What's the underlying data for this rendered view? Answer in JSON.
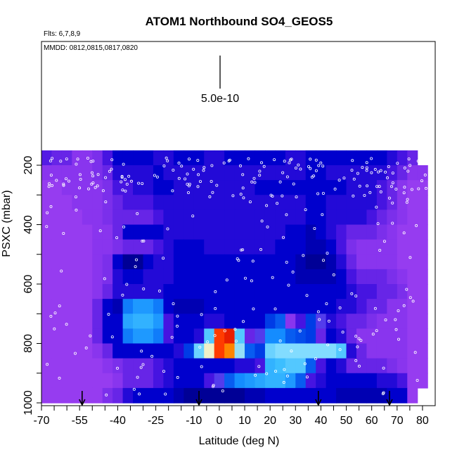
{
  "chart_data": {
    "type": "heatmap",
    "title": "ATOM1 Northbound SO4_GEOS5",
    "subtitle_flights": "Flts: 6,7,8,9",
    "subtitle_dates": "MMDD: 0812,0815,0817,0820",
    "xlabel": "Latitude (deg N)",
    "ylabel": "PSXC (mbar)",
    "xlim": [
      -70,
      85
    ],
    "ylim": [
      1000,
      0
    ],
    "x_tick_labels": [
      "-70",
      "-55",
      "-40",
      "-25",
      "-10",
      "0",
      "10",
      "20",
      "30",
      "40",
      "50",
      "60",
      "70",
      "80"
    ],
    "y_tick_labels": [
      "200",
      "400",
      "600",
      "800",
      "1000"
    ],
    "scale_label": "5.0e-10",
    "scale_line_lat": 0,
    "lat_bins": [
      -68,
      -64,
      -60,
      -56,
      -52,
      -48,
      -44,
      -40,
      -36,
      -32,
      -28,
      -24,
      -20,
      -16,
      -12,
      -8,
      -4,
      0,
      4,
      8,
      12,
      16,
      20,
      24,
      28,
      32,
      36,
      40,
      44,
      48,
      52,
      56,
      60,
      64,
      68,
      72,
      76,
      80
    ],
    "pressure_bins": [
      175,
      225,
      275,
      325,
      375,
      425,
      475,
      525,
      575,
      625,
      675,
      725,
      775,
      825,
      875,
      925,
      975
    ],
    "values": [
      [
        0.42,
        0.45,
        0.45,
        0.5,
        0.5,
        0.48,
        0.4,
        0.3,
        0.3,
        0.3,
        0.3,
        0.35,
        0.35,
        0.3,
        0.3,
        0.3,
        0.35,
        0.35,
        0.3,
        0.3,
        0.3,
        0.3,
        0.3,
        0.3,
        0.35,
        0.35,
        0.3,
        0.3,
        0.3,
        0.3,
        0.3,
        0.3,
        0.3,
        0.3,
        0.35,
        0.4,
        0.45,
        0.0
      ],
      [
        0.5,
        0.5,
        0.5,
        0.5,
        0.5,
        0.48,
        0.45,
        0.35,
        0.35,
        0.35,
        0.35,
        0.3,
        0.35,
        0.35,
        0.35,
        0.35,
        0.35,
        0.35,
        0.35,
        0.35,
        0.35,
        0.35,
        0.35,
        0.35,
        0.35,
        0.35,
        0.3,
        0.3,
        0.35,
        0.35,
        0.35,
        0.35,
        0.35,
        0.35,
        0.4,
        0.45,
        0.5,
        0.5
      ],
      [
        0.52,
        0.52,
        0.5,
        0.5,
        0.5,
        0.5,
        0.48,
        0.4,
        0.4,
        0.35,
        0.35,
        0.3,
        0.3,
        0.35,
        0.35,
        0.35,
        0.35,
        0.35,
        0.35,
        0.35,
        0.35,
        0.3,
        0.3,
        0.3,
        0.3,
        0.3,
        0.3,
        0.3,
        0.3,
        0.3,
        0.35,
        0.35,
        0.35,
        0.4,
        0.45,
        0.5,
        0.52,
        0.52
      ],
      [
        0.52,
        0.52,
        0.52,
        0.5,
        0.5,
        0.5,
        0.48,
        0.45,
        0.4,
        0.4,
        0.4,
        0.35,
        0.35,
        0.35,
        0.35,
        0.35,
        0.35,
        0.35,
        0.35,
        0.35,
        0.35,
        0.35,
        0.35,
        0.35,
        0.35,
        0.35,
        0.3,
        0.3,
        0.35,
        0.35,
        0.35,
        0.35,
        0.35,
        0.4,
        0.45,
        0.5,
        0.52,
        0.52
      ],
      [
        0.52,
        0.52,
        0.52,
        0.52,
        0.5,
        0.5,
        0.48,
        0.45,
        0.45,
        0.45,
        0.45,
        0.4,
        0.35,
        0.35,
        0.35,
        0.35,
        0.35,
        0.35,
        0.35,
        0.35,
        0.35,
        0.35,
        0.35,
        0.35,
        0.35,
        0.35,
        0.3,
        0.3,
        0.35,
        0.35,
        0.35,
        0.35,
        0.4,
        0.45,
        0.48,
        0.5,
        0.52,
        0.52
      ],
      [
        0.52,
        0.52,
        0.52,
        0.52,
        0.52,
        0.5,
        0.5,
        0.45,
        0.3,
        0.3,
        0.3,
        0.3,
        0.35,
        0.35,
        0.35,
        0.35,
        0.35,
        0.35,
        0.35,
        0.35,
        0.35,
        0.35,
        0.35,
        0.35,
        0.3,
        0.3,
        0.25,
        0.3,
        0.35,
        0.4,
        0.45,
        0.45,
        0.45,
        0.48,
        0.5,
        0.52,
        0.52,
        0.52
      ],
      [
        0.52,
        0.52,
        0.52,
        0.52,
        0.52,
        0.5,
        0.5,
        0.48,
        0.45,
        0.45,
        0.45,
        0.4,
        0.35,
        0.3,
        0.3,
        0.3,
        0.35,
        0.35,
        0.35,
        0.35,
        0.35,
        0.35,
        0.35,
        0.3,
        0.3,
        0.3,
        0.25,
        0.25,
        0.3,
        0.4,
        0.48,
        0.5,
        0.5,
        0.5,
        0.5,
        0.52,
        0.52,
        0.52
      ],
      [
        0.52,
        0.52,
        0.52,
        0.52,
        0.52,
        0.5,
        0.48,
        0.3,
        0.15,
        0.15,
        0.3,
        0.35,
        0.35,
        0.3,
        0.3,
        0.3,
        0.3,
        0.3,
        0.3,
        0.3,
        0.3,
        0.3,
        0.3,
        0.3,
        0.3,
        0.25,
        0.2,
        0.2,
        0.25,
        0.35,
        0.45,
        0.5,
        0.5,
        0.5,
        0.5,
        0.52,
        0.52,
        0.52
      ],
      [
        0.52,
        0.52,
        0.52,
        0.52,
        0.52,
        0.5,
        0.48,
        0.35,
        0.3,
        0.3,
        0.35,
        0.35,
        0.35,
        0.3,
        0.3,
        0.3,
        0.3,
        0.3,
        0.3,
        0.3,
        0.3,
        0.3,
        0.3,
        0.3,
        0.3,
        0.25,
        0.25,
        0.25,
        0.25,
        0.3,
        0.4,
        0.45,
        0.45,
        0.45,
        0.48,
        0.5,
        0.52,
        0.52
      ],
      [
        0.52,
        0.52,
        0.52,
        0.52,
        0.52,
        0.5,
        0.45,
        0.35,
        0.35,
        0.35,
        0.35,
        0.35,
        0.3,
        0.3,
        0.3,
        0.3,
        0.3,
        0.3,
        0.3,
        0.3,
        0.3,
        0.3,
        0.3,
        0.3,
        0.3,
        0.3,
        0.3,
        0.3,
        0.3,
        0.3,
        0.35,
        0.4,
        0.4,
        0.45,
        0.45,
        0.48,
        0.52,
        0.52
      ],
      [
        0.52,
        0.52,
        0.52,
        0.52,
        0.52,
        0.45,
        0.3,
        0.25,
        0.9,
        1.0,
        1.0,
        0.9,
        0.3,
        0.25,
        0.25,
        0.25,
        0.3,
        0.3,
        0.3,
        0.3,
        0.3,
        0.3,
        0.3,
        0.3,
        0.3,
        0.3,
        0.3,
        0.3,
        0.3,
        0.35,
        0.35,
        0.4,
        0.45,
        0.45,
        0.5,
        0.5,
        0.52,
        0.52
      ],
      [
        0.52,
        0.52,
        0.52,
        0.52,
        0.52,
        0.45,
        0.3,
        0.3,
        1.05,
        1.1,
        1.1,
        1.0,
        0.4,
        0.3,
        0.3,
        0.3,
        0.35,
        0.35,
        0.3,
        0.3,
        0.3,
        0.3,
        0.7,
        0.8,
        0.5,
        0.4,
        0.7,
        0.6,
        0.35,
        0.4,
        0.45,
        0.45,
        0.48,
        0.5,
        0.5,
        0.5,
        0.52,
        0.52
      ],
      [
        0.52,
        0.52,
        0.52,
        0.52,
        0.52,
        0.45,
        0.3,
        0.3,
        0.9,
        1.0,
        1.0,
        0.9,
        0.4,
        0.3,
        0.3,
        0.35,
        1.2,
        2.1,
        2.2,
        1.2,
        0.45,
        0.6,
        0.95,
        0.95,
        0.8,
        0.75,
        0.7,
        0.45,
        0.3,
        0.35,
        0.45,
        0.5,
        0.5,
        0.5,
        0.5,
        0.5,
        0.52,
        0.52
      ],
      [
        0.52,
        0.52,
        0.52,
        0.52,
        0.52,
        0.5,
        0.45,
        0.3,
        0.3,
        0.3,
        0.3,
        0.3,
        0.3,
        0.35,
        0.7,
        1.25,
        1.6,
        2.1,
        2.0,
        1.35,
        0.8,
        0.7,
        1.25,
        1.3,
        1.3,
        1.3,
        1.3,
        1.3,
        1.3,
        1.2,
        0.35,
        0.45,
        0.5,
        0.5,
        0.5,
        0.5,
        0.52,
        0.52
      ],
      [
        0.52,
        0.52,
        0.52,
        0.52,
        0.52,
        0.52,
        0.5,
        0.48,
        0.45,
        0.45,
        0.45,
        0.4,
        0.35,
        0.3,
        0.3,
        0.3,
        0.3,
        0.3,
        0.3,
        0.35,
        0.35,
        0.4,
        1.1,
        1.15,
        1.2,
        1.2,
        0.8,
        0.4,
        0.3,
        0.35,
        0.45,
        0.45,
        0.45,
        0.45,
        0.48,
        0.5,
        0.52,
        0.52
      ],
      [
        0.52,
        0.52,
        0.52,
        0.52,
        0.52,
        0.52,
        0.52,
        0.5,
        0.45,
        0.45,
        0.45,
        0.4,
        0.35,
        0.3,
        0.3,
        0.3,
        0.4,
        0.6,
        0.8,
        0.95,
        1.0,
        1.05,
        1.1,
        1.1,
        1.0,
        0.8,
        0.4,
        0.35,
        0.3,
        0.3,
        0.3,
        0.3,
        0.3,
        0.35,
        0.35,
        0.4,
        0.52,
        0.52
      ],
      [
        0.52,
        0.52,
        0.52,
        0.52,
        0.52,
        0.52,
        0.48,
        0.45,
        0.35,
        0.3,
        0.3,
        0.3,
        0.3,
        0.25,
        0.2,
        0.2,
        0.2,
        0.2,
        0.2,
        0.2,
        0.25,
        0.25,
        0.3,
        0.3,
        0.3,
        0.3,
        0.3,
        0.3,
        0.3,
        0.25,
        0.25,
        0.25,
        0.25,
        0.25,
        0.3,
        0.3,
        0.52,
        0.0
      ]
    ],
    "colorscale": [
      "#9d3ff3",
      "#0000c8",
      "#18a8ff",
      "#e0f4ff",
      "#ffd000",
      "#ff3000",
      "#e00000"
    ],
    "observation_marker_color": "#ffffff",
    "profile_arrow_lats": [
      -54,
      -8,
      39,
      67
    ]
  }
}
